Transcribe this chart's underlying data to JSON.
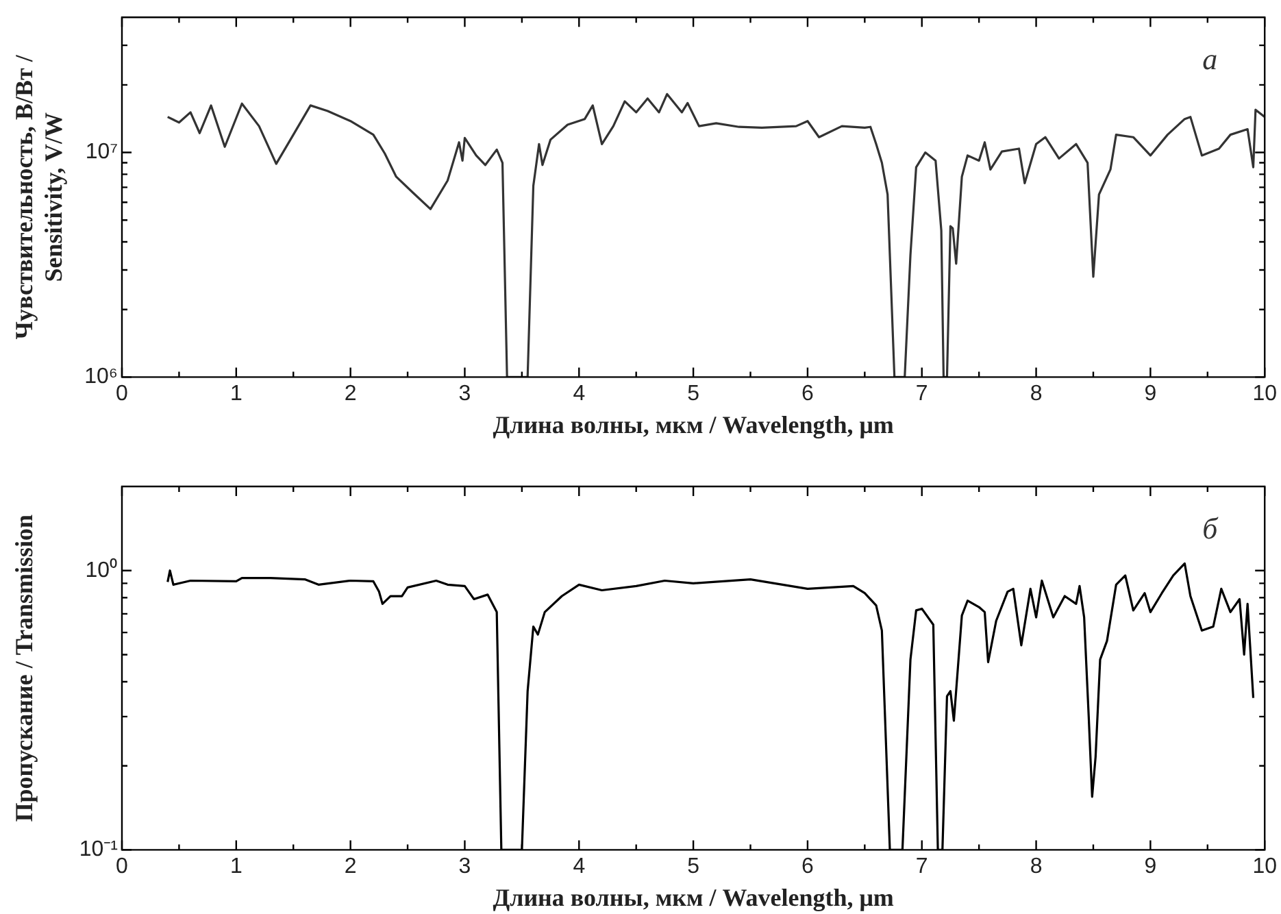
{
  "chart_data": [
    {
      "type": "line",
      "xlabel": "Длина волны, мкм / Wavelength, μm",
      "ylabel": "Чувствительность, В/Вт / Sensitivity, V/W",
      "annotations": [
        "a"
      ],
      "log": "y",
      "grid": false,
      "legend": false,
      "marker": "none",
      "xlim": [
        0,
        10
      ],
      "ylim": [
        1000000,
        40000000
      ],
      "xticks": [
        0,
        {
          "value": 0.5,
          "label": null
        },
        1,
        {
          "value": 1.5,
          "label": null
        },
        2,
        {
          "value": 2.5,
          "label": null
        },
        3,
        {
          "value": 3.5,
          "label": null
        },
        4,
        {
          "value": 4.5,
          "label": null
        },
        5,
        {
          "value": 5.5,
          "label": null
        },
        6,
        {
          "value": 6.5,
          "label": null
        },
        7,
        {
          "value": 7.5,
          "label": null
        },
        8,
        {
          "value": 8.5,
          "label": null
        },
        9,
        {
          "value": 9.5,
          "label": null
        },
        10
      ],
      "yticks": [
        {
          "value": 1000000,
          "label": "10⁶"
        },
        {
          "value": 2000000,
          "label": null
        },
        {
          "value": 3000000,
          "label": null
        },
        {
          "value": 4000000,
          "label": null
        },
        {
          "value": 5000000,
          "label": null
        },
        {
          "value": 6000000,
          "label": null
        },
        {
          "value": 7000000,
          "label": null
        },
        {
          "value": 8000000,
          "label": null
        },
        {
          "value": 9000000,
          "label": null
        },
        {
          "value": 10000000,
          "label": "10⁷"
        },
        {
          "value": 20000000,
          "label": null
        },
        {
          "value": 30000000,
          "label": null
        }
      ],
      "series": [
        {
          "color": "#333333",
          "x": [
            0.4,
            0.5,
            0.6,
            0.68,
            0.78,
            0.9,
            1.05,
            1.2,
            1.35,
            1.5,
            1.65,
            1.8,
            2.0,
            2.2,
            2.3,
            2.4,
            2.55,
            2.7,
            2.85,
            2.95,
            2.98,
            3.0,
            3.1,
            3.18,
            3.28,
            3.33,
            3.37,
            3.55,
            3.6,
            3.65,
            3.68,
            3.75,
            3.9,
            4.05,
            4.12,
            4.2,
            4.3,
            4.4,
            4.5,
            4.6,
            4.7,
            4.77,
            4.9,
            4.95,
            5.05,
            5.2,
            5.4,
            5.6,
            5.9,
            6.0,
            6.1,
            6.3,
            6.5,
            6.55,
            6.6,
            6.65,
            6.7,
            6.76,
            6.85,
            6.9,
            6.95,
            7.03,
            7.12,
            7.17,
            7.19,
            7.22,
            7.25,
            7.27,
            7.3,
            7.35,
            7.4,
            7.5,
            7.55,
            7.6,
            7.7,
            7.85,
            7.9,
            8.0,
            8.08,
            8.2,
            8.35,
            8.45,
            8.5,
            8.55,
            8.65,
            8.7,
            8.85,
            9.0,
            9.15,
            9.3,
            9.35,
            9.45,
            9.6,
            9.7,
            9.85,
            9.9,
            9.92,
            10.0
          ],
          "values": [
            14400000,
            13600000,
            15100000,
            12200000,
            16200000,
            10600000,
            16500000,
            13100000,
            8900000,
            12000000,
            16200000,
            15300000,
            13800000,
            12000000,
            9900000,
            7800000,
            6600000,
            5600000,
            7500000,
            11100000,
            9200000,
            11600000,
            9700000,
            8800000,
            10300000,
            9000000,
            1000000,
            1000000,
            7100000,
            10900000,
            8800000,
            11400000,
            13300000,
            14100000,
            16200000,
            10900000,
            13100000,
            16900000,
            15100000,
            17400000,
            15100000,
            18200000,
            15100000,
            16600000,
            13100000,
            13500000,
            13000000,
            12900000,
            13100000,
            13800000,
            11700000,
            13100000,
            12900000,
            13000000,
            10900000,
            9000000,
            6500000,
            1000000,
            1000000,
            3500000,
            8600000,
            10000000,
            9200000,
            4500000,
            1000000,
            1000000,
            4700000,
            4600000,
            3200000,
            7800000,
            9700000,
            9200000,
            11100000,
            8400000,
            10100000,
            10400000,
            7300000,
            10900000,
            11700000,
            9400000,
            10900000,
            9000000,
            2800000,
            6500000,
            8400000,
            12000000,
            11700000,
            9700000,
            12000000,
            14100000,
            14400000,
            9700000,
            10400000,
            12000000,
            12700000,
            8600000,
            15500000,
            14400000
          ]
        }
      ]
    },
    {
      "type": "line",
      "xlabel": "Длина волны, мкм / Wavelength, μm",
      "ylabel": "Пропускание / Transmission",
      "annotations": [
        "б"
      ],
      "log": "y",
      "grid": false,
      "legend": false,
      "marker": "none",
      "xlim": [
        0,
        10
      ],
      "ylim": [
        0.1,
        2
      ],
      "xticks": [
        0,
        {
          "value": 0.5,
          "label": null
        },
        1,
        {
          "value": 1.5,
          "label": null
        },
        2,
        {
          "value": 2.5,
          "label": null
        },
        3,
        {
          "value": 3.5,
          "label": null
        },
        4,
        {
          "value": 4.5,
          "label": null
        },
        5,
        {
          "value": 5.5,
          "label": null
        },
        6,
        {
          "value": 6.5,
          "label": null
        },
        7,
        {
          "value": 7.5,
          "label": null
        },
        8,
        {
          "value": 8.5,
          "label": null
        },
        9,
        {
          "value": 9.5,
          "label": null
        },
        10
      ],
      "yticks": [
        {
          "value": 0.1,
          "label": "10⁻¹"
        },
        {
          "value": 0.2,
          "label": null
        },
        {
          "value": 0.3,
          "label": null
        },
        {
          "value": 0.4,
          "label": null
        },
        {
          "value": 0.5,
          "label": null
        },
        {
          "value": 0.6,
          "label": null
        },
        {
          "value": 0.7,
          "label": null
        },
        {
          "value": 0.8,
          "label": null
        },
        {
          "value": 0.9,
          "label": null
        },
        {
          "value": 1,
          "label": "10⁰"
        }
      ],
      "series": [
        {
          "color": "#000000",
          "x": [
            0.4,
            0.42,
            0.45,
            0.6,
            1.0,
            1.05,
            1.3,
            1.6,
            1.72,
            2.0,
            2.2,
            2.25,
            2.28,
            2.35,
            2.45,
            2.5,
            2.75,
            2.85,
            3.0,
            3.08,
            3.2,
            3.28,
            3.32,
            3.5,
            3.55,
            3.6,
            3.64,
            3.7,
            3.85,
            4.0,
            4.2,
            4.5,
            4.75,
            5.0,
            5.5,
            6.0,
            6.4,
            6.5,
            6.6,
            6.65,
            6.72,
            6.83,
            6.9,
            6.95,
            7.0,
            7.1,
            7.14,
            7.18,
            7.22,
            7.25,
            7.28,
            7.35,
            7.4,
            7.5,
            7.55,
            7.58,
            7.65,
            7.75,
            7.8,
            7.87,
            7.95,
            8.0,
            8.05,
            8.15,
            8.25,
            8.35,
            8.38,
            8.42,
            8.46,
            8.49,
            8.52,
            8.56,
            8.62,
            8.7,
            8.78,
            8.85,
            8.95,
            9.0,
            9.1,
            9.2,
            9.3,
            9.35,
            9.45,
            9.55,
            9.62,
            9.7,
            9.78,
            9.82,
            9.85,
            9.9
          ],
          "values": [
            0.91,
            1.0,
            0.89,
            0.92,
            0.915,
            0.94,
            0.94,
            0.93,
            0.89,
            0.92,
            0.915,
            0.84,
            0.76,
            0.81,
            0.81,
            0.87,
            0.92,
            0.89,
            0.88,
            0.79,
            0.82,
            0.71,
            0.1,
            0.1,
            0.37,
            0.63,
            0.59,
            0.71,
            0.81,
            0.89,
            0.85,
            0.88,
            0.92,
            0.9,
            0.93,
            0.86,
            0.88,
            0.83,
            0.75,
            0.61,
            0.1,
            0.1,
            0.48,
            0.72,
            0.73,
            0.64,
            0.1,
            0.1,
            0.355,
            0.37,
            0.29,
            0.69,
            0.78,
            0.74,
            0.71,
            0.47,
            0.66,
            0.84,
            0.86,
            0.54,
            0.86,
            0.68,
            0.92,
            0.68,
            0.81,
            0.76,
            0.88,
            0.68,
            0.3,
            0.155,
            0.215,
            0.48,
            0.56,
            0.89,
            0.96,
            0.72,
            0.83,
            0.71,
            0.83,
            0.96,
            1.06,
            0.81,
            0.61,
            0.63,
            0.86,
            0.71,
            0.79,
            0.5,
            0.76,
            0.35
          ]
        }
      ]
    }
  ]
}
